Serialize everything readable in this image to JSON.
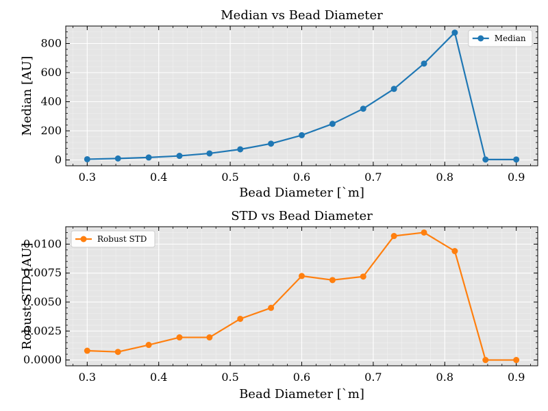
{
  "chart_data": [
    {
      "type": "line",
      "title": "Median vs Bead Diameter",
      "xlabel": "Bead Diameter [`m]",
      "ylabel": "Median [AU]",
      "xlim": [
        0.27,
        0.93
      ],
      "ylim": [
        -40,
        920
      ],
      "xticks": [
        "0.3",
        "0.4",
        "0.5",
        "0.6",
        "0.7",
        "0.8",
        "0.9"
      ],
      "yticks": [
        "0",
        "200",
        "400",
        "600",
        "800"
      ],
      "grid": true,
      "legend_position": "top-right",
      "color": "#1f77b4",
      "series": [
        {
          "name": "Median",
          "x": [
            0.3,
            0.343,
            0.386,
            0.429,
            0.471,
            0.514,
            0.557,
            0.6,
            0.643,
            0.686,
            0.729,
            0.771,
            0.814,
            0.857,
            0.9
          ],
          "values": [
            5,
            10,
            17,
            28,
            45,
            73,
            112,
            170,
            248,
            352,
            488,
            662,
            875,
            3,
            3
          ]
        }
      ]
    },
    {
      "type": "line",
      "title": "STD vs Bead Diameter",
      "xlabel": "Bead Diameter [`m]",
      "ylabel": "Robust STD [AU]",
      "xlim": [
        0.27,
        0.93
      ],
      "ylim": [
        -0.0005,
        0.0115
      ],
      "xticks": [
        "0.3",
        "0.4",
        "0.5",
        "0.6",
        "0.7",
        "0.8",
        "0.9"
      ],
      "yticks": [
        "0.0000",
        "0.0025",
        "0.0050",
        "0.0075",
        "0.0100"
      ],
      "grid": true,
      "legend_position": "top-left",
      "color": "#ff7f0e",
      "series": [
        {
          "name": "Robust STD",
          "x": [
            0.3,
            0.343,
            0.386,
            0.429,
            0.471,
            0.514,
            0.557,
            0.6,
            0.643,
            0.686,
            0.729,
            0.771,
            0.814,
            0.857,
            0.9
          ],
          "values": [
            0.0008,
            0.0007,
            0.0013,
            0.00195,
            0.00195,
            0.00355,
            0.0045,
            0.00725,
            0.0069,
            0.0072,
            0.0107,
            0.011,
            0.0094,
            0.0,
            0.0
          ]
        }
      ]
    }
  ]
}
